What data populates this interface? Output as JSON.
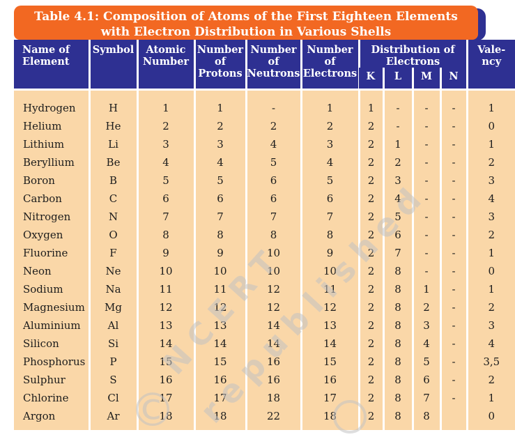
{
  "colors": {
    "banner_orange": "#F26822",
    "header_navy": "#2E3092",
    "body_peach": "#FAD7A8",
    "separator_white": "#FFFFFF",
    "body_text": "#1c1c1c",
    "watermark_gray": "#c3c3c3"
  },
  "title": {
    "line1": "Table 4.1: Composition of Atoms of the First Eighteen Elements",
    "line2": "with Electron Distribution in Various Shells"
  },
  "table": {
    "headers": {
      "name": "Name of Element",
      "symbol": "Symbol",
      "atomic": "Atomic Number",
      "protons": "Number of Protons",
      "neutrons": "Number of Neutrons",
      "electrons": "Number of Electrons",
      "distribution": "Distribution of Electrons",
      "shells": [
        "K",
        "L",
        "M",
        "N"
      ],
      "valency": "Vale-ncy"
    },
    "row_keys": [
      "name",
      "symbol",
      "atomic",
      "protons",
      "neutrons",
      "electrons",
      "k",
      "l",
      "m",
      "n",
      "valency"
    ],
    "rows": [
      {
        "name": "Hydrogen",
        "symbol": "H",
        "atomic": "1",
        "protons": "1",
        "neutrons": "-",
        "electrons": "1",
        "k": "1",
        "l": "-",
        "m": "-",
        "n": "-",
        "valency": "1"
      },
      {
        "name": "Helium",
        "symbol": "He",
        "atomic": "2",
        "protons": "2",
        "neutrons": "2",
        "electrons": "2",
        "k": "2",
        "l": "-",
        "m": "-",
        "n": "-",
        "valency": "0"
      },
      {
        "name": "Lithium",
        "symbol": "Li",
        "atomic": "3",
        "protons": "3",
        "neutrons": "4",
        "electrons": "3",
        "k": "2",
        "l": "1",
        "m": "-",
        "n": "-",
        "valency": "1"
      },
      {
        "name": "Beryllium",
        "symbol": "Be",
        "atomic": "4",
        "protons": "4",
        "neutrons": "5",
        "electrons": "4",
        "k": "2",
        "l": "2",
        "m": "-",
        "n": "-",
        "valency": "2"
      },
      {
        "name": "Boron",
        "symbol": "B",
        "atomic": "5",
        "protons": "5",
        "neutrons": "6",
        "electrons": "5",
        "k": "2",
        "l": "3",
        "m": "-",
        "n": "-",
        "valency": "3"
      },
      {
        "name": "Carbon",
        "symbol": "C",
        "atomic": "6",
        "protons": "6",
        "neutrons": "6",
        "electrons": "6",
        "k": "2",
        "l": "4",
        "m": "-",
        "n": "-",
        "valency": "4"
      },
      {
        "name": "Nitrogen",
        "symbol": "N",
        "atomic": "7",
        "protons": "7",
        "neutrons": "7",
        "electrons": "7",
        "k": "2",
        "l": "5",
        "m": "-",
        "n": "-",
        "valency": "3"
      },
      {
        "name": "Oxygen",
        "symbol": "O",
        "atomic": "8",
        "protons": "8",
        "neutrons": "8",
        "electrons": "8",
        "k": "2",
        "l": "6",
        "m": "-",
        "n": "-",
        "valency": "2"
      },
      {
        "name": "Fluorine",
        "symbol": "F",
        "atomic": "9",
        "protons": "9",
        "neutrons": "10",
        "electrons": "9",
        "k": "2",
        "l": "7",
        "m": "-",
        "n": "-",
        "valency": "1"
      },
      {
        "name": "Neon",
        "symbol": "Ne",
        "atomic": "10",
        "protons": "10",
        "neutrons": "10",
        "electrons": "10",
        "k": "2",
        "l": "8",
        "m": "-",
        "n": "-",
        "valency": "0"
      },
      {
        "name": "Sodium",
        "symbol": "Na",
        "atomic": "11",
        "protons": "11",
        "neutrons": "12",
        "electrons": "11",
        "k": "2",
        "l": "8",
        "m": "1",
        "n": "-",
        "valency": "1"
      },
      {
        "name": "Magnesium",
        "symbol": "Mg",
        "atomic": "12",
        "protons": "12",
        "neutrons": "12",
        "electrons": "12",
        "k": "2",
        "l": "8",
        "m": "2",
        "n": "-",
        "valency": "2"
      },
      {
        "name": "Aluminium",
        "symbol": "Al",
        "atomic": "13",
        "protons": "13",
        "neutrons": "14",
        "electrons": "13",
        "k": "2",
        "l": "8",
        "m": "3",
        "n": "-",
        "valency": "3"
      },
      {
        "name": "Silicon",
        "symbol": "Si",
        "atomic": "14",
        "protons": "14",
        "neutrons": "14",
        "electrons": "14",
        "k": "2",
        "l": "8",
        "m": "4",
        "n": "-",
        "valency": "4"
      },
      {
        "name": "Phosphorus",
        "symbol": "P",
        "atomic": "15",
        "protons": "15",
        "neutrons": "16",
        "electrons": "15",
        "k": "2",
        "l": "8",
        "m": "5",
        "n": "-",
        "valency": "3,5"
      },
      {
        "name": "Sulphur",
        "symbol": "S",
        "atomic": "16",
        "protons": "16",
        "neutrons": "16",
        "electrons": "16",
        "k": "2",
        "l": "8",
        "m": "6",
        "n": "-",
        "valency": "2"
      },
      {
        "name": "Chlorine",
        "symbol": "Cl",
        "atomic": "17",
        "protons": "17",
        "neutrons": "18",
        "electrons": "17",
        "k": "2",
        "l": "8",
        "m": "7",
        "n": "-",
        "valency": "1"
      },
      {
        "name": "Argon",
        "symbol": "Ar",
        "atomic": "18",
        "protons": "18",
        "neutrons": "22",
        "electrons": "18",
        "k": "2",
        "l": "8",
        "m": "8",
        "n": "",
        "valency": "0"
      }
    ]
  },
  "watermark": {
    "copyright_symbol": "©",
    "org": "NCERT",
    "phrase": "republished"
  }
}
